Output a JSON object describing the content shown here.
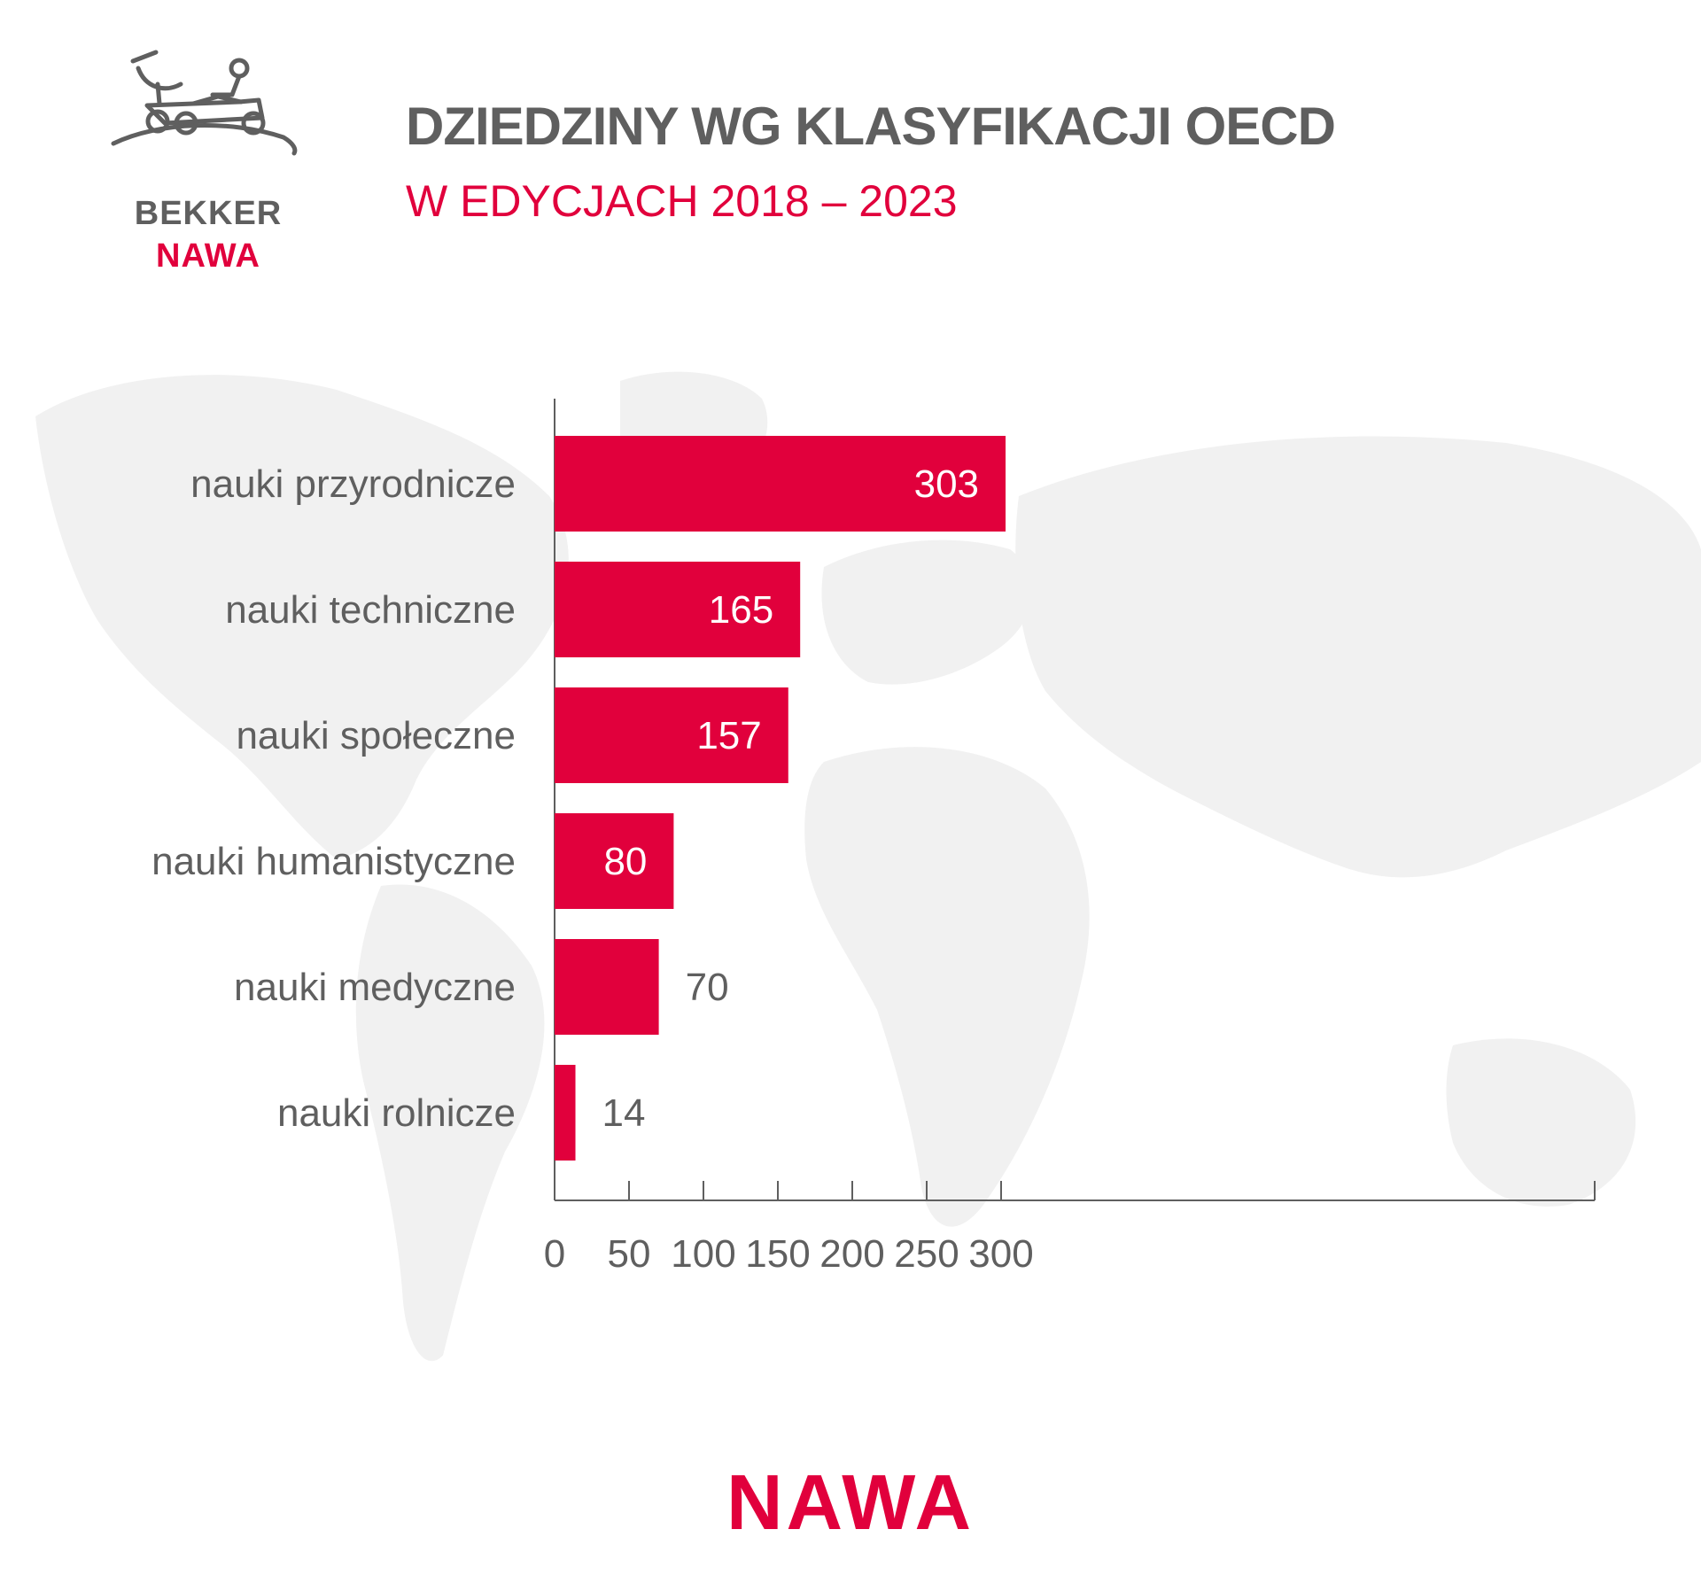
{
  "colors": {
    "accent": "#e1003c",
    "text": "#5f5f5f",
    "axis": "#5f5f5f",
    "value_inside": "#ffffff",
    "map": "#f1f1f1"
  },
  "logo": {
    "icon": "rover-with-antenna-icon",
    "line1": "BEKKER",
    "line2": "NAWA"
  },
  "header": {
    "title": "DZIEDZINY WG KLASYFIKACJI OECD",
    "subtitle": "W EDYCJACH 2018 – 2023"
  },
  "chart_data": {
    "type": "bar",
    "orientation": "horizontal",
    "categories": [
      "nauki przyrodnicze",
      "nauki techniczne",
      "nauki społeczne",
      "nauki humanistyczne",
      "nauki medyczne",
      "nauki rolnicze"
    ],
    "values": [
      303,
      165,
      157,
      80,
      70,
      14
    ],
    "xlim": [
      0,
      350
    ],
    "xticks": [
      0,
      50,
      100,
      150,
      200,
      250,
      300
    ],
    "grid": false,
    "legend": "none"
  },
  "footer": {
    "brand": "NAWA"
  }
}
